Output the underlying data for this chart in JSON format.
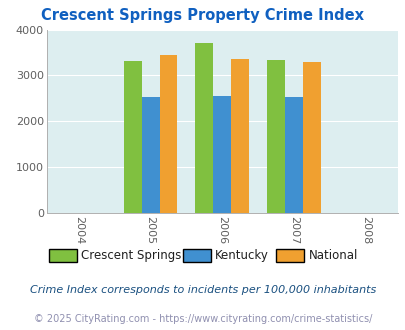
{
  "title": "Crescent Springs Property Crime Index",
  "years": [
    2005,
    2006,
    2007
  ],
  "x_ticks": [
    2004,
    2005,
    2006,
    2007,
    2008
  ],
  "series": {
    "Crescent Springs": [
      3310,
      3700,
      3330
    ],
    "Kentucky": [
      2540,
      2560,
      2540
    ],
    "National": [
      3440,
      3360,
      3290
    ]
  },
  "colors": {
    "Crescent Springs": "#80c040",
    "Kentucky": "#4090d0",
    "National": "#f0a030"
  },
  "ylim": [
    0,
    4000
  ],
  "yticks": [
    0,
    1000,
    2000,
    3000,
    4000
  ],
  "bg_color": "#ddeef0",
  "title_color": "#1060c0",
  "bar_width": 0.25,
  "subtitle": "Crime Index corresponds to incidents per 100,000 inhabitants",
  "footer": "© 2025 CityRating.com - https://www.cityrating.com/crime-statistics/",
  "subtitle_color": "#1a5080",
  "footer_color": "#9090b0"
}
